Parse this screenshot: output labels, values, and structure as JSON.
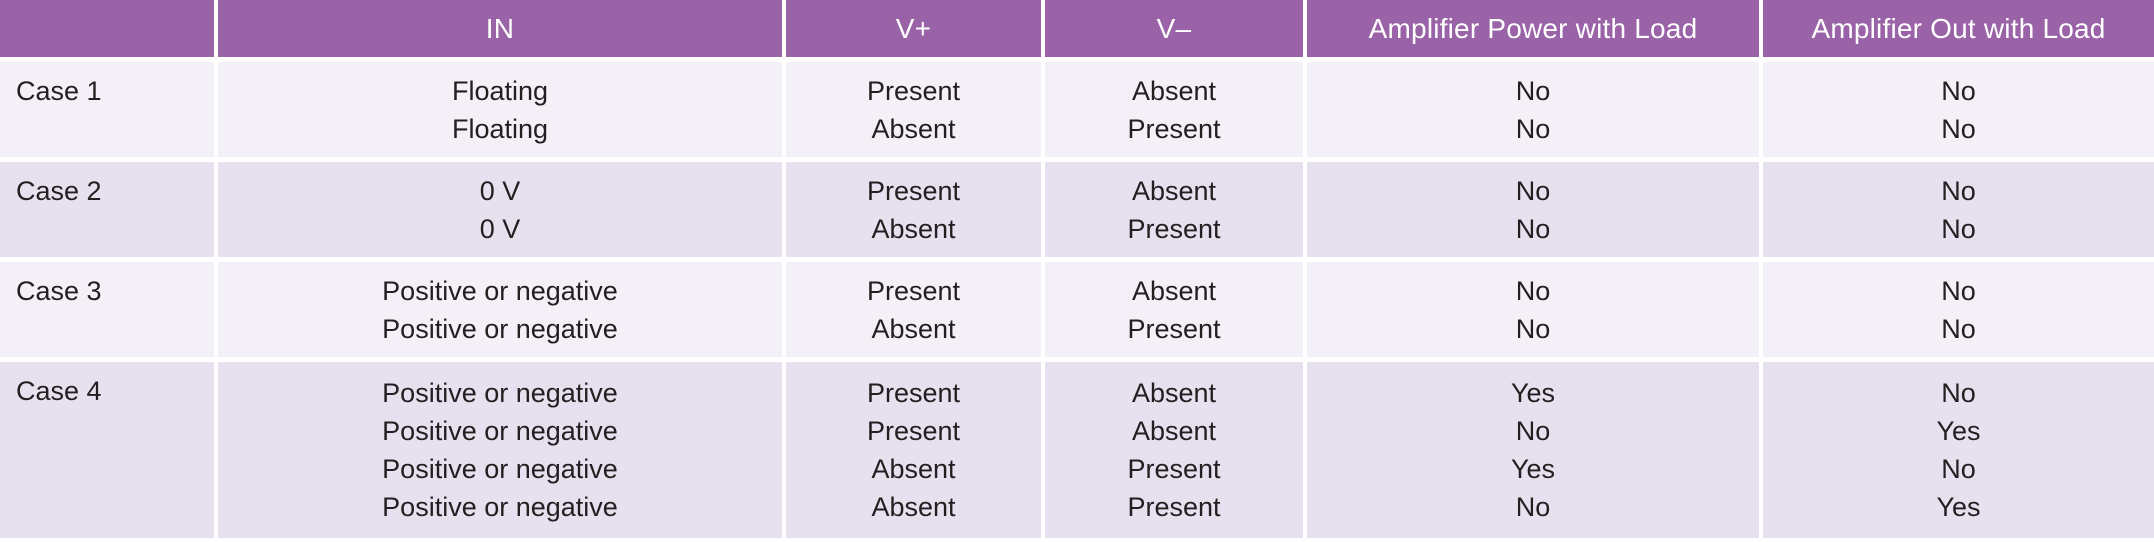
{
  "theme": {
    "header_bg": "#9a63a8",
    "header_text": "#ffffff",
    "row_light_bg": "#f3f0f7",
    "row_dark_bg": "#e7e0ee",
    "body_text": "#231f20",
    "separator": "#ffffff"
  },
  "table": {
    "header": [
      "",
      "IN",
      "V+",
      "V–",
      "Amplifier Power with Load",
      "Amplifier Out with Load"
    ],
    "column_keys": [
      "in",
      "v_plus",
      "v_minus",
      "amp_power",
      "amp_out"
    ],
    "rows": [
      {
        "label": "Case 1",
        "in": [
          "Floating",
          "Floating"
        ],
        "v_plus": [
          "Present",
          "Absent"
        ],
        "v_minus": [
          "Absent",
          "Present"
        ],
        "amp_power": [
          "No",
          "No"
        ],
        "amp_out": [
          "No",
          "No"
        ]
      },
      {
        "label": "Case 2",
        "in": [
          "0 V",
          "0 V"
        ],
        "v_plus": [
          "Present",
          "Absent"
        ],
        "v_minus": [
          "Absent",
          "Present"
        ],
        "amp_power": [
          "No",
          "No"
        ],
        "amp_out": [
          "No",
          "No"
        ]
      },
      {
        "label": "Case 3",
        "in": [
          "Positive or negative",
          "Positive or negative"
        ],
        "v_plus": [
          "Present",
          "Absent"
        ],
        "v_minus": [
          "Absent",
          "Present"
        ],
        "amp_power": [
          "No",
          "No"
        ],
        "amp_out": [
          "No",
          "No"
        ]
      },
      {
        "label": "Case 4",
        "in": [
          "Positive or negative",
          "Positive or negative",
          "Positive or negative",
          "Positive or negative"
        ],
        "v_plus": [
          "Present",
          "Present",
          "Absent",
          "Absent"
        ],
        "v_minus": [
          "Absent",
          "Absent",
          "Present",
          "Present"
        ],
        "amp_power": [
          "Yes",
          "No",
          "Yes",
          "No"
        ],
        "amp_out": [
          "No",
          "Yes",
          "No",
          "Yes"
        ]
      }
    ]
  }
}
